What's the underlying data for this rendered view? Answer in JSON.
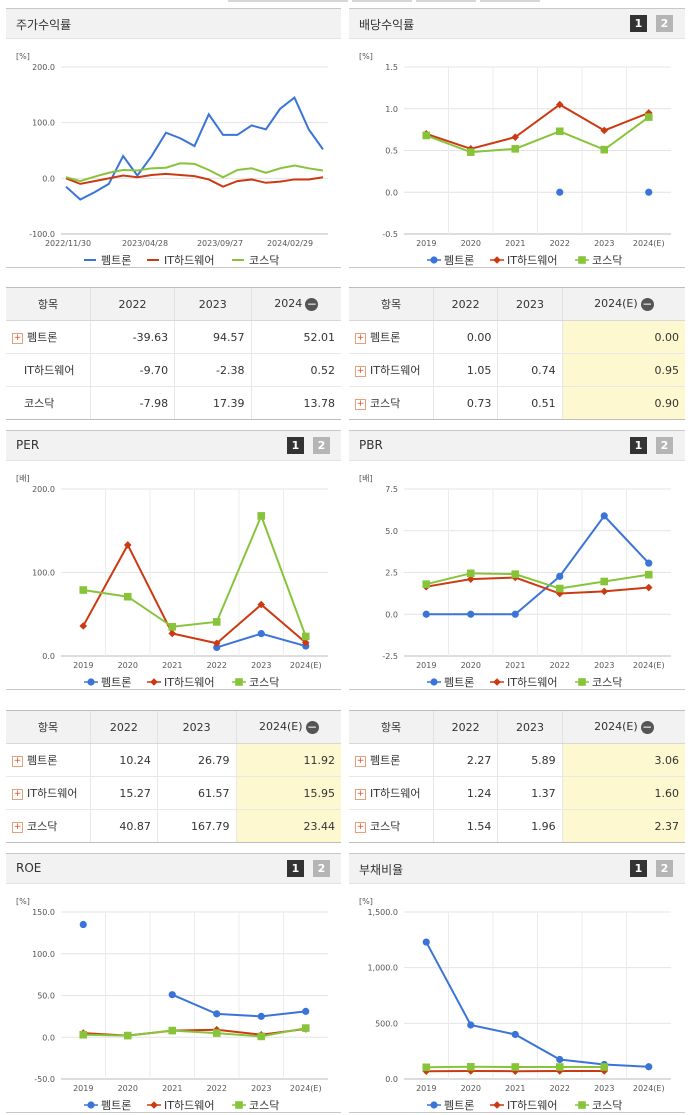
{
  "colors": {
    "s1": "#3a74d9",
    "s2": "#cc3a12",
    "s3": "#88c43a"
  },
  "legend": [
    "펨트론",
    "IT하드웨어",
    "코스닥"
  ],
  "buttons": {
    "one": "1",
    "two": "2"
  },
  "chart_data": [
    {
      "id": "stock_return",
      "title": "주가수익률",
      "type": "line",
      "unit": "[%]",
      "ylim": [
        -100,
        200
      ],
      "yticks": [
        "200.0",
        "100.0",
        "0.0",
        "-100.0"
      ],
      "x_labels": [
        "2022/11/30",
        "2023/04/28",
        "2023/09/27",
        "2024/02/29"
      ],
      "series": [
        {
          "name": "펨트론",
          "values": [
            -15,
            -38,
            -25,
            -10,
            40,
            5,
            40,
            82,
            72,
            58,
            115,
            78,
            78,
            95,
            88,
            125,
            145,
            88,
            52
          ]
        },
        {
          "name": "IT하드웨어",
          "values": [
            0,
            -10,
            -5,
            0,
            5,
            2,
            6,
            8,
            6,
            4,
            -2,
            -15,
            -5,
            -2,
            -8,
            -6,
            -2,
            -2,
            2
          ]
        },
        {
          "name": "코스닥",
          "values": [
            2,
            -5,
            3,
            10,
            15,
            14,
            18,
            19,
            27,
            26,
            15,
            2,
            15,
            18,
            10,
            18,
            23,
            18,
            14
          ]
        }
      ]
    },
    {
      "id": "dividend_yield",
      "title": "배당수익률",
      "type": "line",
      "unit": "[%]",
      "ylim": [
        -0.5,
        1.5
      ],
      "yticks": [
        "1.5",
        "1.0",
        "0.5",
        "0.0",
        "-0.5"
      ],
      "x_labels": [
        "2019",
        "2020",
        "2021",
        "2022",
        "2023",
        "2024(E)"
      ],
      "series": [
        {
          "name": "펨트론",
          "values": [
            null,
            null,
            null,
            0.0,
            null,
            0.0
          ]
        },
        {
          "name": "IT하드웨어",
          "values": [
            0.7,
            0.52,
            0.66,
            1.05,
            0.74,
            0.95
          ]
        },
        {
          "name": "코스닥",
          "values": [
            0.68,
            0.48,
            0.52,
            0.73,
            0.51,
            0.9
          ]
        }
      ]
    },
    {
      "id": "per",
      "title": "PER",
      "type": "line",
      "unit": "[배]",
      "ylim": [
        0,
        200
      ],
      "yticks": [
        "200.0",
        "100.0",
        "0.0"
      ],
      "x_labels": [
        "2019",
        "2020",
        "2021",
        "2022",
        "2023",
        "2024(E)"
      ],
      "series": [
        {
          "name": "펨트론",
          "values": [
            null,
            null,
            null,
            10.24,
            26.79,
            11.92
          ]
        },
        {
          "name": "IT하드웨어",
          "values": [
            36,
            133,
            27,
            15.27,
            61.57,
            15.95
          ]
        },
        {
          "name": "코스닥",
          "values": [
            79,
            71,
            35,
            40.87,
            167.79,
            23.44
          ]
        }
      ]
    },
    {
      "id": "pbr",
      "title": "PBR",
      "type": "line",
      "unit": "[배]",
      "ylim": [
        -2.5,
        7.5
      ],
      "yticks": [
        "7.5",
        "5.0",
        "2.5",
        "0.0",
        "-2.5"
      ],
      "x_labels": [
        "2019",
        "2020",
        "2021",
        "2022",
        "2023",
        "2024(E)"
      ],
      "series": [
        {
          "name": "펨트론",
          "values": [
            0.0,
            0.0,
            0.0,
            2.27,
            5.89,
            3.06
          ]
        },
        {
          "name": "IT하드웨어",
          "values": [
            1.65,
            2.1,
            2.2,
            1.24,
            1.37,
            1.6
          ]
        },
        {
          "name": "코스닥",
          "values": [
            1.8,
            2.45,
            2.4,
            1.54,
            1.96,
            2.37
          ]
        }
      ]
    },
    {
      "id": "roe",
      "title": "ROE",
      "type": "line",
      "unit": "[%]",
      "ylim": [
        -50,
        150
      ],
      "yticks": [
        "150.0",
        "100.0",
        "50.0",
        "0.0",
        "-50.0"
      ],
      "x_labels": [
        "2019",
        "2020",
        "2021",
        "2022",
        "2023",
        "2024(E)"
      ],
      "series": [
        {
          "name": "펨트론",
          "values": [
            135,
            null,
            51,
            28,
            25,
            31
          ]
        },
        {
          "name": "IT하드웨어",
          "values": [
            5,
            2,
            8,
            9,
            3,
            10
          ]
        },
        {
          "name": "코스닥",
          "values": [
            3,
            2,
            8,
            5,
            1,
            11
          ]
        }
      ]
    },
    {
      "id": "debt_ratio",
      "title": "부채비율",
      "type": "line",
      "unit": "[%]",
      "ylim": [
        0,
        1500
      ],
      "yticks": [
        "1,500.0",
        "1,000.0",
        "500.0",
        "0.0"
      ],
      "x_labels": [
        "2019",
        "2020",
        "2021",
        "2022",
        "2023",
        "2024(E)"
      ],
      "series": [
        {
          "name": "펨트론",
          "values": [
            1230,
            485,
            400,
            175,
            130,
            110
          ]
        },
        {
          "name": "IT하드웨어",
          "values": [
            70,
            72,
            70,
            72,
            72,
            null
          ]
        },
        {
          "name": "코스닥",
          "values": [
            105,
            110,
            108,
            108,
            108,
            null
          ]
        }
      ]
    }
  ],
  "tables": {
    "stock_return": {
      "header": [
        "항목",
        "2022",
        "2023",
        "2024"
      ],
      "rows": [
        {
          "name": "펨트론",
          "values": [
            "-39.63",
            "94.57",
            "52.01"
          ]
        },
        {
          "name": "IT하드웨어",
          "values": [
            "-9.70",
            "-2.38",
            "0.52"
          ]
        },
        {
          "name": "코스닥",
          "values": [
            "-7.98",
            "17.39",
            "13.78"
          ]
        }
      ]
    },
    "dividend_yield": {
      "header": [
        "항목",
        "2022",
        "2023",
        "2024(E)"
      ],
      "rows": [
        {
          "name": "펨트론",
          "values": [
            "0.00",
            "",
            "0.00"
          ]
        },
        {
          "name": "IT하드웨어",
          "values": [
            "1.05",
            "0.74",
            "0.95"
          ]
        },
        {
          "name": "코스닥",
          "values": [
            "0.73",
            "0.51",
            "0.90"
          ]
        }
      ]
    },
    "per": {
      "header": [
        "항목",
        "2022",
        "2023",
        "2024(E)"
      ],
      "rows": [
        {
          "name": "펨트론",
          "values": [
            "10.24",
            "26.79",
            "11.92"
          ]
        },
        {
          "name": "IT하드웨어",
          "values": [
            "15.27",
            "61.57",
            "15.95"
          ]
        },
        {
          "name": "코스닥",
          "values": [
            "40.87",
            "167.79",
            "23.44"
          ]
        }
      ]
    },
    "pbr": {
      "header": [
        "항목",
        "2022",
        "2023",
        "2024(E)"
      ],
      "rows": [
        {
          "name": "펨트론",
          "values": [
            "2.27",
            "5.89",
            "3.06"
          ]
        },
        {
          "name": "IT하드웨어",
          "values": [
            "1.24",
            "1.37",
            "1.60"
          ]
        },
        {
          "name": "코스닥",
          "values": [
            "1.54",
            "1.96",
            "2.37"
          ]
        }
      ]
    }
  }
}
